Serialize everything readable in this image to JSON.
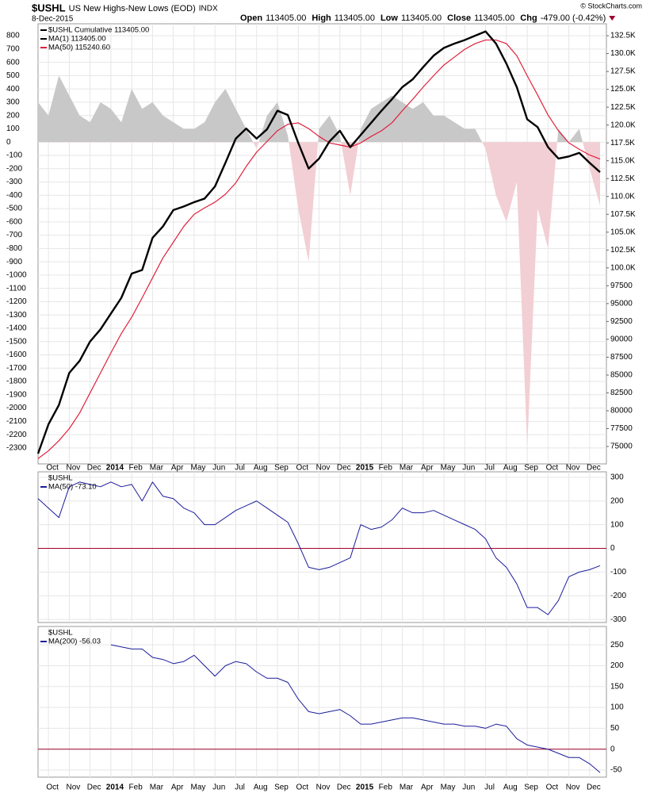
{
  "header": {
    "symbol": "$USHL",
    "description": "US New Highs-New Lows (EOD)",
    "exchange": "INDX",
    "date": "8-Dec-2015",
    "quote": [
      {
        "label": "Open",
        "value": "113405.00"
      },
      {
        "label": "High",
        "value": "113405.00"
      },
      {
        "label": "Low",
        "value": "113405.00"
      },
      {
        "label": "Close",
        "value": "113405.00"
      },
      {
        "label": "Chg",
        "value": "-479.00 (-0.42%)"
      }
    ],
    "credit": "© StockCharts.com"
  },
  "chart_data": [
    {
      "type": "line",
      "categories": [
        null,
        "Oct",
        null,
        "Nov",
        null,
        "Dec",
        null,
        "2014",
        null,
        "Feb",
        null,
        "Mar",
        null,
        "Apr",
        null,
        "May",
        null,
        "Jun",
        null,
        "Jul",
        null,
        "Aug",
        null,
        "Sep",
        null,
        "Oct",
        null,
        "Nov",
        null,
        "Dec",
        null,
        "2015",
        null,
        "Feb",
        null,
        "Mar",
        null,
        "Apr",
        null,
        "May",
        null,
        "Jun",
        null,
        "Jul",
        null,
        "Aug",
        null,
        "Sep",
        null,
        "Oct",
        null,
        "Nov",
        null,
        "Dec",
        null
      ],
      "legend": [
        {
          "text": "$USHL Cumulative 113405.00",
          "color": "#000000"
        },
        {
          "text": "MA(1) 113405.00",
          "color": "#000000"
        },
        {
          "text": "MA(50) 115240.60",
          "color": "#e0203c"
        }
      ],
      "series": [
        {
          "type": "area",
          "color": "#c8c8c8",
          "negative_color": "#f2cfd4",
          "values": [
            300,
            200,
            500,
            350,
            200,
            150,
            300,
            250,
            150,
            400,
            250,
            300,
            200,
            150,
            100,
            100,
            150,
            300,
            400,
            250,
            100,
            -50,
            200,
            300,
            50,
            -500,
            -900,
            100,
            200,
            50,
            -400,
            100,
            250,
            300,
            350,
            300,
            250,
            300,
            200,
            200,
            150,
            100,
            100,
            -50,
            -400,
            -600,
            -300,
            -2300,
            -500,
            -800,
            100,
            0,
            100,
            -200,
            -479
          ]
        },
        {
          "type": "line",
          "color": "#e0203c",
          "width": 1.2,
          "axis": "y2",
          "values": [
            73300,
            74400,
            75800,
            77500,
            79700,
            82500,
            85300,
            88100,
            90800,
            93100,
            95800,
            98600,
            101400,
            103600,
            105800,
            107500,
            108400,
            109200,
            110300,
            111900,
            114200,
            116200,
            117700,
            119200,
            120100,
            120300,
            119500,
            118400,
            117500,
            117200,
            116900,
            117500,
            118400,
            119200,
            120300,
            122000,
            123600,
            125300,
            126900,
            128400,
            129500,
            130600,
            131400,
            131900,
            131900,
            131400,
            129700,
            126900,
            124200,
            121400,
            119200,
            117500,
            116600,
            115800,
            115240.6
          ]
        },
        {
          "type": "line",
          "color": "#000000",
          "width": 2.4,
          "axis": "y2",
          "values": [
            74000,
            78100,
            80800,
            85300,
            87000,
            89700,
            91400,
            93600,
            95800,
            99200,
            99700,
            104200,
            105800,
            108100,
            108600,
            109200,
            109700,
            111400,
            114700,
            118100,
            119500,
            118100,
            119400,
            122000,
            121400,
            117500,
            113900,
            115300,
            117700,
            119200,
            116900,
            118600,
            120300,
            122000,
            123600,
            125300,
            126400,
            128100,
            129700,
            130800,
            131400,
            131900,
            132500,
            133100,
            131400,
            128600,
            125300,
            120800,
            119700,
            116900,
            115300,
            115600,
            116100,
            114700,
            113405
          ]
        }
      ],
      "ylim": [
        -2420,
        890
      ],
      "yticks": [
        800,
        700,
        600,
        500,
        400,
        300,
        200,
        100,
        0,
        -100,
        -200,
        -300,
        -400,
        -500,
        -600,
        -700,
        -800,
        -900,
        -1000,
        -1100,
        -1200,
        -1300,
        -1400,
        -1500,
        -1600,
        -1700,
        -1800,
        -1900,
        -2000,
        -2100,
        -2200,
        -2300
      ],
      "y2lim": [
        72560,
        134170
      ],
      "y2ticks": [
        {
          "value": 132500,
          "label": "132.5K"
        },
        {
          "value": 130000,
          "label": "130.0K"
        },
        {
          "value": 127500,
          "label": "127.5K"
        },
        {
          "value": 125000,
          "label": "125.0K"
        },
        {
          "value": 122500,
          "label": "122.5K"
        },
        {
          "value": 120000,
          "label": "120.0K"
        },
        {
          "value": 117500,
          "label": "117.5K"
        },
        {
          "value": 115000,
          "label": "115.0K"
        },
        {
          "value": 112500,
          "label": "112.5K"
        },
        {
          "value": 110000,
          "label": "110.0K"
        },
        {
          "value": 107500,
          "label": "107.5K"
        },
        {
          "value": 105000,
          "label": "105.0K"
        },
        {
          "value": 102500,
          "label": "102.5K"
        },
        {
          "value": 100000,
          "label": "100.0K"
        },
        97500,
        95000,
        92500,
        90000,
        87500,
        85000,
        82500,
        80000,
        77500,
        75000
      ],
      "grid": true
    },
    {
      "type": "line",
      "legend": [
        {
          "text": "$USHL"
        },
        {
          "text": "MA(50) -73.10",
          "color": "#1c1c9c"
        }
      ],
      "series": [
        {
          "type": "line",
          "color": "#1c1c9c",
          "width": 1,
          "values": [
            210,
            170,
            130,
            260,
            280,
            270,
            260,
            280,
            260,
            270,
            200,
            280,
            220,
            210,
            170,
            150,
            100,
            100,
            130,
            160,
            180,
            200,
            170,
            140,
            110,
            20,
            -80,
            -90,
            -80,
            -60,
            -40,
            100,
            80,
            90,
            120,
            170,
            150,
            150,
            160,
            140,
            120,
            100,
            80,
            40,
            -40,
            -80,
            -150,
            -250,
            -250,
            -280,
            -220,
            -120,
            -100,
            -90,
            -73.1
          ]
        }
      ],
      "ylim": [
        -313,
        323
      ],
      "yticks": [
        300,
        200,
        100,
        0,
        -100,
        -200,
        -300
      ],
      "yaxis_position": "right",
      "grid": true,
      "hline": {
        "value": 0,
        "color": "#a0002a"
      }
    },
    {
      "type": "line",
      "categories": [
        null,
        "Oct",
        null,
        "Nov",
        null,
        "Dec",
        null,
        "2014",
        null,
        "Feb",
        null,
        "Mar",
        null,
        "Apr",
        null,
        "May",
        null,
        "Jun",
        null,
        "Jul",
        null,
        "Aug",
        null,
        "Sep",
        null,
        "Oct",
        null,
        "Nov",
        null,
        "Dec",
        null,
        "2015",
        null,
        "Feb",
        null,
        "Mar",
        null,
        "Apr",
        null,
        "May",
        null,
        "Jun",
        null,
        "Jul",
        null,
        "Aug",
        null,
        "Sep",
        null,
        "Oct",
        null,
        "Nov",
        null,
        "Dec",
        null
      ],
      "legend": [
        {
          "text": "$USHL"
        },
        {
          "text": "MA(200) -56.03",
          "color": "#1c1c9c"
        }
      ],
      "series": [
        {
          "type": "line",
          "color": "#1c1c9c",
          "width": 1,
          "values": [
            null,
            null,
            null,
            null,
            null,
            null,
            null,
            250,
            245,
            240,
            240,
            220,
            215,
            205,
            210,
            225,
            200,
            175,
            200,
            210,
            205,
            185,
            170,
            170,
            160,
            120,
            90,
            85,
            90,
            95,
            80,
            60,
            60,
            65,
            70,
            75,
            75,
            70,
            65,
            60,
            60,
            55,
            55,
            50,
            60,
            55,
            25,
            10,
            5,
            0,
            -10,
            -20,
            -20,
            -35,
            -56.03
          ]
        }
      ],
      "ylim": [
        -67,
        294
      ],
      "yticks": [
        250,
        200,
        150,
        100,
        50,
        0,
        -50
      ],
      "yaxis_position": "right",
      "grid": true,
      "hline": {
        "value": 0,
        "color": "#a0002a"
      }
    }
  ]
}
